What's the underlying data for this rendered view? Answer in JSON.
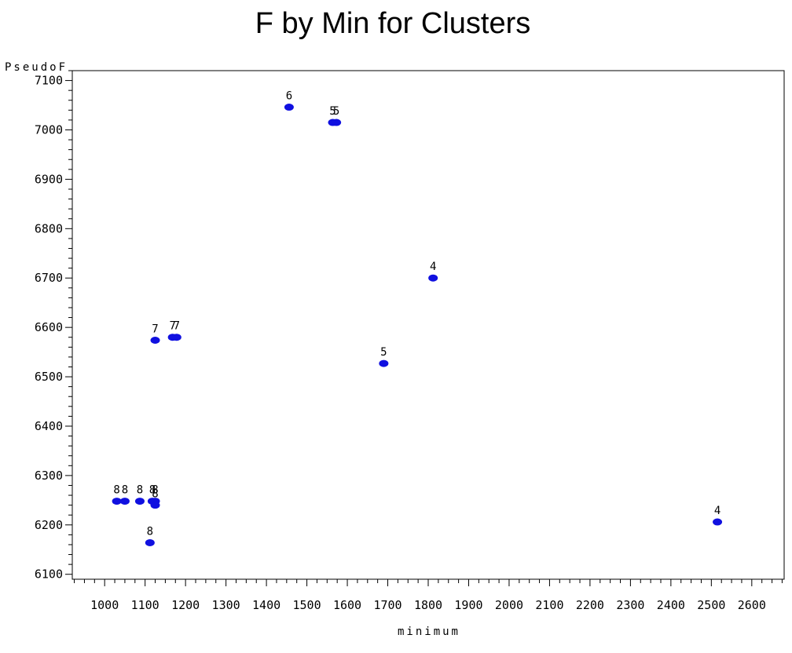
{
  "chart_data": {
    "type": "scatter",
    "title": "F by Min for Clusters",
    "xlabel": "minimum",
    "ylabel": "PseudoF",
    "xlim": [
      920,
      2680
    ],
    "ylim": [
      6090,
      7120
    ],
    "xticks": [
      1000,
      1100,
      1200,
      1300,
      1400,
      1500,
      1600,
      1700,
      1800,
      1900,
      2000,
      2100,
      2200,
      2300,
      2400,
      2500,
      2600
    ],
    "yticks": [
      6100,
      6200,
      6300,
      6400,
      6500,
      6600,
      6700,
      6800,
      6900,
      7000,
      7100
    ],
    "marker_color": "#1010e0",
    "points": [
      {
        "x": 1030,
        "y": 6248,
        "label": "8"
      },
      {
        "x": 1050,
        "y": 6248,
        "label": "8"
      },
      {
        "x": 1087,
        "y": 6248,
        "label": "8"
      },
      {
        "x": 1118,
        "y": 6248,
        "label": "8"
      },
      {
        "x": 1125,
        "y": 6248,
        "label": "8"
      },
      {
        "x": 1125,
        "y": 6240,
        "label": "8"
      },
      {
        "x": 1112,
        "y": 6164,
        "label": "8"
      },
      {
        "x": 1125,
        "y": 6574,
        "label": "7"
      },
      {
        "x": 1168,
        "y": 6580,
        "label": "7"
      },
      {
        "x": 1178,
        "y": 6580,
        "label": "7"
      },
      {
        "x": 1456,
        "y": 7046,
        "label": "6"
      },
      {
        "x": 1564,
        "y": 7015,
        "label": "5"
      },
      {
        "x": 1573,
        "y": 7015,
        "label": "5"
      },
      {
        "x": 1690,
        "y": 6527,
        "label": "5"
      },
      {
        "x": 1812,
        "y": 6700,
        "label": "4"
      },
      {
        "x": 2515,
        "y": 6206,
        "label": "4"
      }
    ]
  }
}
